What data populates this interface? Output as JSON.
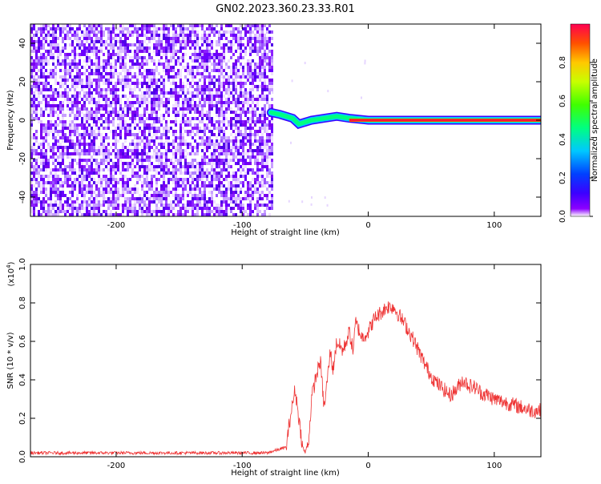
{
  "title": "GN02.2023.360.23.33.R01",
  "chart_data": [
    {
      "type": "heatmap",
      "title": "GN02.2023.360.23.33.R01",
      "xlabel": "Height of straight line (km)",
      "ylabel": "Frequency (Hz)",
      "xlim": [
        -268,
        137
      ],
      "ylim": [
        -50,
        50
      ],
      "x_ticks": [
        -200,
        -100,
        0,
        100
      ],
      "x_tick_labels": [
        "-200",
        "-100",
        "0",
        "100"
      ],
      "y_ticks": [
        -40,
        -20,
        0,
        20,
        40
      ],
      "y_tick_labels": [
        "-40",
        "-20",
        "0",
        "20",
        "40"
      ],
      "noise_region_x": [
        -268,
        -77
      ],
      "signal_track": [
        [
          -77,
          4
        ],
        [
          -70,
          3
        ],
        [
          -60,
          1
        ],
        [
          -55,
          -2
        ],
        [
          -45,
          0
        ],
        [
          -35,
          1
        ],
        [
          -25,
          2
        ],
        [
          -15,
          1
        ],
        [
          0,
          0
        ],
        [
          137,
          0
        ]
      ],
      "signal_frequency_hz": 0,
      "colorbar": {
        "label": "Normalized spectral amplitude",
        "range": [
          0.0,
          1.0
        ],
        "ticks": [
          0.0,
          0.2,
          0.4,
          0.6,
          0.8
        ],
        "tick_labels": [
          "0.0",
          "0.2",
          "0.4",
          "0.6",
          "0.8"
        ],
        "colors": [
          "#ffffff",
          "#8c00ff",
          "#3c00ff",
          "#0040ff",
          "#00c8ff",
          "#00ff80",
          "#40ff00",
          "#c8ff00",
          "#ffc800",
          "#ff5000",
          "#ff0050"
        ]
      }
    },
    {
      "type": "line",
      "xlabel": "Height of straight line (km)",
      "ylabel": "SNR (10 * v/v)",
      "y_scale_label": "(x10",
      "y_scale_exponent": "4",
      "xlim": [
        -268,
        137
      ],
      "ylim": [
        0.0,
        1.0
      ],
      "x_ticks": [
        -200,
        -100,
        0,
        100
      ],
      "x_tick_labels": [
        "-200",
        "-100",
        "0",
        "100"
      ],
      "y_ticks": [
        0.0,
        0.2,
        0.4,
        0.6,
        0.8,
        1.0
      ],
      "y_tick_labels": [
        "0.0",
        "0.2",
        "0.4",
        "0.6",
        "0.8",
        "1.0"
      ],
      "line_color": "#ee3333",
      "series": [
        {
          "x": [
            -268,
            -200,
            -120,
            -80,
            -65,
            -62,
            -58,
            -52,
            -50,
            -47,
            -45,
            -42,
            -38,
            -35,
            -30,
            -28,
            -25,
            -20,
            -15,
            -12,
            -10,
            -5,
            0,
            5,
            10,
            15,
            20,
            25,
            30,
            35,
            40,
            45,
            50,
            55,
            60,
            65,
            70,
            75,
            80,
            85,
            90,
            95,
            100,
            105,
            110,
            115,
            120,
            125,
            130,
            137
          ],
          "y": [
            0.02,
            0.02,
            0.02,
            0.02,
            0.05,
            0.2,
            0.35,
            0.05,
            0.02,
            0.1,
            0.3,
            0.4,
            0.5,
            0.25,
            0.55,
            0.45,
            0.6,
            0.55,
            0.65,
            0.55,
            0.7,
            0.62,
            0.65,
            0.72,
            0.75,
            0.78,
            0.78,
            0.73,
            0.68,
            0.62,
            0.55,
            0.48,
            0.42,
            0.38,
            0.35,
            0.32,
            0.35,
            0.4,
            0.37,
            0.36,
            0.33,
            0.32,
            0.3,
            0.29,
            0.28,
            0.27,
            0.26,
            0.25,
            0.24,
            0.24
          ]
        }
      ]
    }
  ]
}
